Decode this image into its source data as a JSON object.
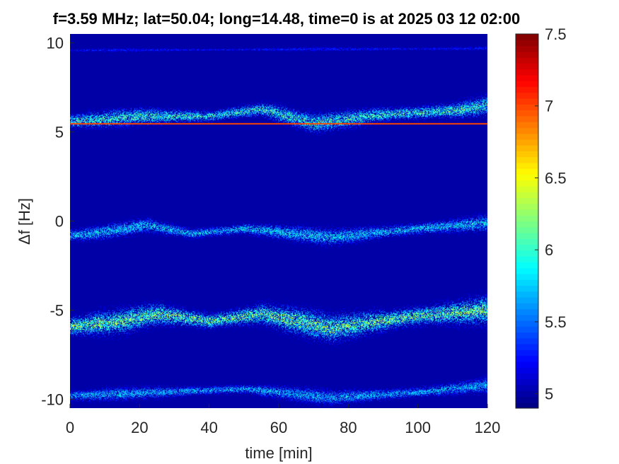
{
  "chart_data": {
    "type": "heatmap",
    "title": "f=3.59 MHz;  lat=50.04; long=14.48, time=0 is at 2025 03 12 02:00",
    "xlabel": "time [min]",
    "ylabel": "Δf [Hz]",
    "xlim": [
      0,
      120
    ],
    "ylim": [
      -10.5,
      10.5
    ],
    "x_ticks": [
      0,
      20,
      40,
      60,
      80,
      100,
      120
    ],
    "x_tick_labels": [
      "0",
      "20",
      "40",
      "60",
      "80",
      "100",
      "120"
    ],
    "y_ticks": [
      10,
      5,
      0,
      -5,
      -10
    ],
    "y_tick_labels": [
      "10",
      "5",
      "0",
      "-5",
      "-10"
    ],
    "colorbar": {
      "range": [
        4.9,
        7.5
      ],
      "ticks": [
        7.5,
        7,
        6.5,
        6,
        5.5,
        5
      ],
      "tick_labels": [
        "7.5",
        "7",
        "6.5",
        "6",
        "5.5",
        "5"
      ],
      "colormap": "jet"
    },
    "background_value": 5.0,
    "carrier_line": {
      "df": 5.5,
      "value": 7.0
    },
    "bands": [
      {
        "center_df": [
          [
            0,
            5.6
          ],
          [
            20,
            5.9
          ],
          [
            40,
            5.9
          ],
          [
            55,
            6.3
          ],
          [
            70,
            5.5
          ],
          [
            90,
            6.0
          ],
          [
            110,
            6.2
          ],
          [
            120,
            6.5
          ]
        ],
        "halfwidth": 0.45,
        "peak": 6.4
      },
      {
        "center_df": [
          [
            0,
            -0.8
          ],
          [
            10,
            -0.6
          ],
          [
            22,
            -0.2
          ],
          [
            35,
            -0.7
          ],
          [
            50,
            -0.4
          ],
          [
            60,
            -0.6
          ],
          [
            75,
            -0.9
          ],
          [
            95,
            -0.5
          ],
          [
            120,
            -0.1
          ]
        ],
        "halfwidth": 0.4,
        "peak": 6.1
      },
      {
        "center_df": [
          [
            0,
            -5.9
          ],
          [
            15,
            -5.6
          ],
          [
            25,
            -5.2
          ],
          [
            40,
            -5.6
          ],
          [
            55,
            -5.2
          ],
          [
            75,
            -6.0
          ],
          [
            100,
            -5.3
          ],
          [
            120,
            -5.0
          ]
        ],
        "halfwidth": 0.65,
        "peak": 6.6
      },
      {
        "center_df": [
          [
            0,
            -9.8
          ],
          [
            25,
            -9.6
          ],
          [
            50,
            -9.4
          ],
          [
            60,
            -9.6
          ],
          [
            75,
            -9.9
          ],
          [
            100,
            -9.6
          ],
          [
            120,
            -9.2
          ]
        ],
        "halfwidth": 0.35,
        "peak": 6.0
      },
      {
        "center_df": [
          [
            0,
            9.6
          ],
          [
            120,
            9.7
          ]
        ],
        "halfwidth": 0.1,
        "peak": 5.4
      }
    ]
  },
  "colors": {
    "background": "#00008f",
    "axis": "#262626"
  }
}
